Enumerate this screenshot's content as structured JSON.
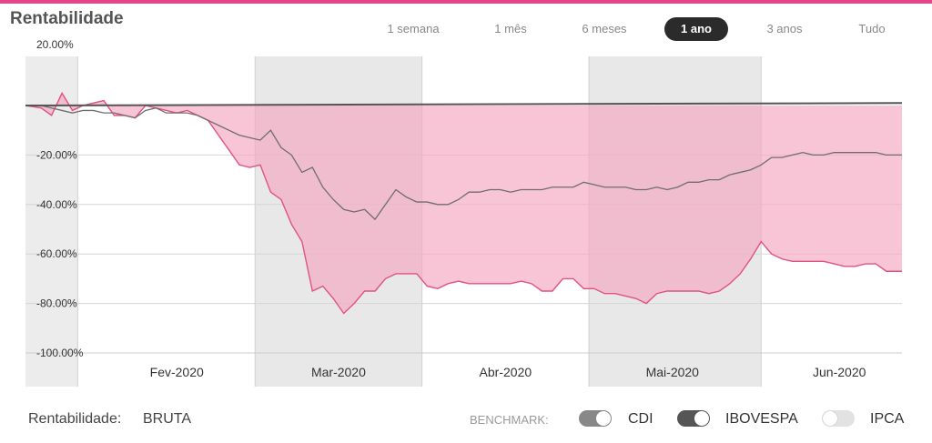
{
  "title": "Rentabilidade",
  "colors": {
    "accent": "#e8468a",
    "fund_fill": "#f4a6c0",
    "fund_line": "#e2527f",
    "benchmark_line": "#6e6e6e",
    "shaded_band": "#d9d9d9",
    "active_period": "#2b2b2b",
    "toggle_dark": "#555555",
    "toggle_mid": "#888888",
    "toggle_off": "#e2e2e2"
  },
  "periods": [
    {
      "label": "1 semana",
      "active": false
    },
    {
      "label": "1 mês",
      "active": false
    },
    {
      "label": "6 meses",
      "active": false
    },
    {
      "label": "1 ano",
      "active": true
    },
    {
      "label": "3 anos",
      "active": false
    },
    {
      "label": "Tudo",
      "active": false
    }
  ],
  "footer": {
    "rent_label": "Rentabilidade:",
    "rent_value": "BRUTA",
    "benchmark_label": "BENCHMARK:",
    "benchmarks": [
      {
        "name": "CDI",
        "on": true,
        "icon": "toggle-icon"
      },
      {
        "name": "IBOVESPA",
        "on": true,
        "icon": "toggle-icon"
      },
      {
        "name": "IPCA",
        "on": false,
        "icon": "toggle-icon"
      }
    ]
  },
  "chart_data": {
    "type": "area",
    "ylim": [
      -100,
      20
    ],
    "yticks": [
      20,
      -20,
      -40,
      -60,
      -80,
      -100
    ],
    "ytick_labels": [
      "20.00%",
      "-20.00%",
      "-40.00%",
      "-60.00%",
      "-80.00%",
      "-100.00%"
    ],
    "xlim": [
      -3,
      165
    ],
    "month_labels": [
      {
        "label": "Fev-2020",
        "x": 26
      },
      {
        "label": "Mar-2020",
        "x": 57
      },
      {
        "label": "Abr-2020",
        "x": 89
      },
      {
        "label": "Mai-2020",
        "x": 121
      },
      {
        "label": "Jun-2020",
        "x": 153
      }
    ],
    "month_bands": [
      {
        "from": 7,
        "to": 41,
        "shaded": false
      },
      {
        "from": 41,
        "to": 73,
        "shaded": true
      },
      {
        "from": 73,
        "to": 105,
        "shaded": false
      },
      {
        "from": 105,
        "to": 138,
        "shaded": true
      },
      {
        "from": 138,
        "to": 165,
        "shaded": false
      }
    ],
    "series": [
      {
        "key": "fund",
        "style": "area",
        "x": [
          -3,
          0,
          2,
          4,
          6,
          8,
          10,
          12,
          14,
          16,
          18,
          20,
          22,
          24,
          26,
          28,
          30,
          32,
          34,
          36,
          38,
          40,
          42,
          44,
          46,
          48,
          50,
          52,
          54,
          56,
          58,
          60,
          62,
          64,
          66,
          68,
          70,
          72,
          74,
          76,
          78,
          80,
          82,
          84,
          86,
          88,
          90,
          92,
          94,
          96,
          98,
          100,
          102,
          104,
          106,
          108,
          110,
          112,
          114,
          116,
          118,
          120,
          122,
          124,
          126,
          128,
          130,
          132,
          134,
          136,
          138,
          140,
          142,
          144,
          146,
          148,
          150,
          152,
          154,
          156,
          158,
          160,
          162,
          164,
          165
        ],
        "values": [
          0,
          -1,
          -4,
          5,
          -2,
          0,
          1,
          2,
          -4,
          -4,
          -5,
          0,
          -1,
          -2,
          -3,
          -2,
          -4,
          -6,
          -12,
          -18,
          -24,
          -25,
          -24,
          -35,
          -38,
          -48,
          -55,
          -75,
          -73,
          -78,
          -84,
          -80,
          -75,
          -75,
          -70,
          -68,
          -68,
          -68,
          -73,
          -74,
          -72,
          -71,
          -72,
          -72,
          -72,
          -72,
          -72,
          -71,
          -72,
          -75,
          -75,
          -70,
          -70,
          -74,
          -74,
          -76,
          -76,
          -77,
          -78,
          -80,
          -76,
          -75,
          -75,
          -75,
          -75,
          -76,
          -75,
          -72,
          -68,
          -62,
          -55,
          -60,
          -62,
          -63,
          -63,
          -63,
          -63,
          -64,
          -65,
          -65,
          -64,
          -64,
          -67,
          -67,
          -67
        ]
      },
      {
        "key": "benchmark",
        "style": "line",
        "x": [
          -3,
          0,
          2,
          4,
          6,
          8,
          10,
          12,
          14,
          16,
          18,
          20,
          22,
          24,
          26,
          28,
          30,
          32,
          34,
          36,
          38,
          40,
          42,
          44,
          46,
          48,
          50,
          52,
          54,
          56,
          58,
          60,
          62,
          64,
          66,
          68,
          70,
          72,
          74,
          76,
          78,
          80,
          82,
          84,
          86,
          88,
          90,
          92,
          94,
          96,
          98,
          100,
          102,
          104,
          106,
          108,
          110,
          112,
          114,
          116,
          118,
          120,
          122,
          124,
          126,
          128,
          130,
          132,
          134,
          136,
          138,
          140,
          142,
          144,
          146,
          148,
          150,
          152,
          154,
          156,
          158,
          160,
          162,
          164,
          165
        ],
        "values": [
          0,
          0,
          -1,
          -2,
          -3,
          -2,
          -2,
          -3,
          -3,
          -4,
          -5,
          -2,
          -1,
          -3,
          -3,
          -3,
          -4,
          -6,
          -8,
          -10,
          -12,
          -13,
          -14,
          -10,
          -17,
          -20,
          -27,
          -25,
          -33,
          -38,
          -42,
          -43,
          -42,
          -46,
          -40,
          -34,
          -37,
          -39,
          -39,
          -40,
          -40,
          -38,
          -35,
          -35,
          -34,
          -34,
          -35,
          -34,
          -34,
          -34,
          -33,
          -33,
          -33,
          -31,
          -32,
          -33,
          -33,
          -33,
          -34,
          -34,
          -33,
          -34,
          -33,
          -31,
          -31,
          -30,
          -30,
          -28,
          -27,
          -26,
          -24,
          -21,
          -21,
          -20,
          -19,
          -20,
          -20,
          -19,
          -19,
          -19,
          -19,
          -19,
          -20,
          -20,
          -20
        ]
      },
      {
        "key": "cdi",
        "style": "line",
        "x": [
          -3,
          165
        ],
        "values": [
          0,
          1
        ]
      }
    ]
  }
}
